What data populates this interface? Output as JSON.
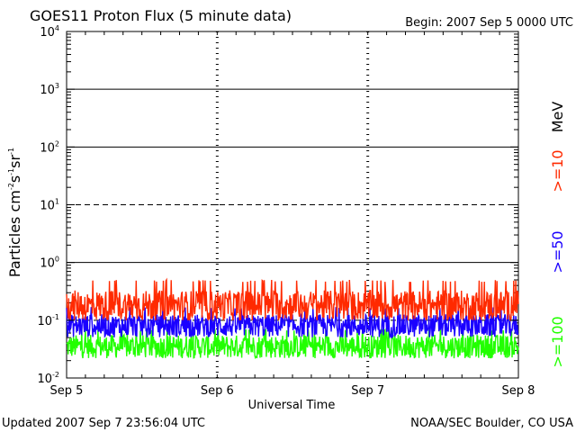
{
  "header": {
    "title": "GOES11 Proton Flux (5 minute data)",
    "begin": "Begin: 2007 Sep 5 0000 UTC"
  },
  "footer": {
    "updated": "Updated 2007 Sep  7 23:56:04 UTC",
    "credit": "NOAA/SEC Boulder, CO USA"
  },
  "chart_data": {
    "type": "line",
    "title": "GOES11 Proton Flux (5 minute data)",
    "xlabel": "Universal Time",
    "ylabel": "Particles cm-2 s-1 sr-1",
    "ylabel_parts": {
      "base": "10",
      "unit_text": "Particles cm",
      "exp1": "-2",
      "s": "s",
      "exp2": "-1",
      "sr": "sr",
      "exp3": "-1"
    },
    "y_scale": "log",
    "ylim": [
      0.01,
      10000
    ],
    "y_ticks": [
      {
        "base": "10",
        "exp": "-2",
        "value": 0.01
      },
      {
        "base": "10",
        "exp": "-1",
        "value": 0.1
      },
      {
        "base": "10",
        "exp": "0",
        "value": 1
      },
      {
        "base": "10",
        "exp": "1",
        "value": 10
      },
      {
        "base": "10",
        "exp": "2",
        "value": 100
      },
      {
        "base": "10",
        "exp": "3",
        "value": 1000
      },
      {
        "base": "10",
        "exp": "4",
        "value": 10000
      }
    ],
    "x_ticks": [
      "Sep 5",
      "Sep 6",
      "Sep 7",
      "Sep 8"
    ],
    "x_range_days": [
      0,
      3
    ],
    "unit_label": "MeV",
    "series": [
      {
        "name": ">=10",
        "color": "#ff2a00",
        "typical_value": 0.18,
        "approx_range": [
          0.1,
          0.5
        ]
      },
      {
        "name": ">=50",
        "color": "#1a00ff",
        "typical_value": 0.08,
        "approx_range": [
          0.05,
          0.17
        ]
      },
      {
        "name": ">=100",
        "color": "#22ff00",
        "typical_value": 0.035,
        "approx_range": [
          0.02,
          0.07
        ]
      }
    ],
    "grid": true,
    "legend": "right side, vertical"
  }
}
